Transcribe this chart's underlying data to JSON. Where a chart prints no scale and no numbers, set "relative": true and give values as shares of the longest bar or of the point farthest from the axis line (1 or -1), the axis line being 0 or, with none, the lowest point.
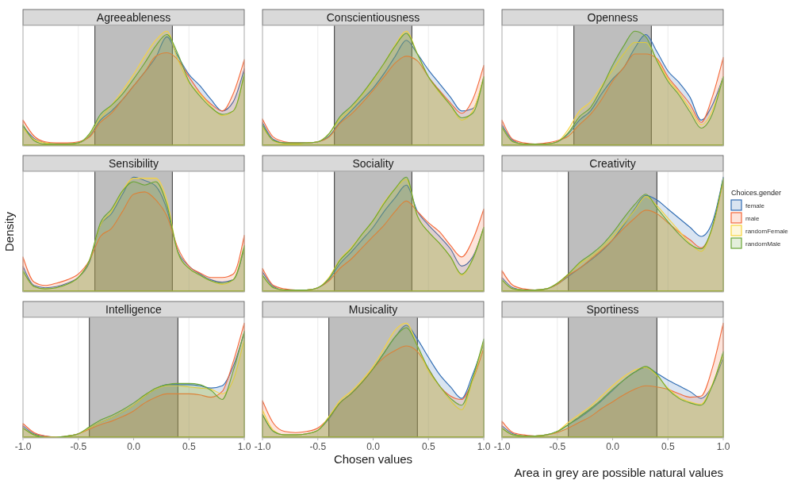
{
  "chart_data": [
    {
      "type": "area",
      "title": "Agreeableness",
      "relative": true,
      "x": [
        -1,
        -0.9,
        -0.8,
        -0.7,
        -0.6,
        -0.5,
        -0.4,
        -0.3,
        -0.2,
        -0.1,
        0,
        0.1,
        0.2,
        0.3,
        0.4,
        0.5,
        0.6,
        0.7,
        0.8,
        0.9,
        1
      ],
      "xlim": [
        -1,
        1
      ],
      "xticks": [
        -1,
        -0.5,
        0,
        0.5,
        1
      ],
      "tick_labels": false,
      "grid": "x",
      "bands": [
        {
          "axis": "x",
          "from": -0.35,
          "to": 0.35,
          "color": "#bebebe"
        }
      ],
      "ref_lines": [
        {
          "axis": "x",
          "value": -0.35,
          "color": "#333333"
        },
        {
          "axis": "x",
          "value": 0.35,
          "color": "#333333"
        }
      ],
      "series": [
        {
          "color": "#2f6cb3",
          "values": [
            0.17,
            0.06,
            0.02,
            0.01,
            0.01,
            0.02,
            0.08,
            0.22,
            0.3,
            0.4,
            0.52,
            0.64,
            0.77,
            0.95,
            0.78,
            0.62,
            0.52,
            0.4,
            0.3,
            0.38,
            0.67
          ]
        },
        {
          "color": "#f4683a",
          "values": [
            0.22,
            0.08,
            0.03,
            0.02,
            0.02,
            0.03,
            0.07,
            0.2,
            0.28,
            0.4,
            0.52,
            0.64,
            0.78,
            0.81,
            0.75,
            0.6,
            0.46,
            0.36,
            0.3,
            0.45,
            0.75
          ]
        },
        {
          "color": "#f7d43c",
          "values": [
            0.15,
            0.05,
            0.02,
            0.01,
            0.01,
            0.02,
            0.09,
            0.24,
            0.35,
            0.48,
            0.62,
            0.78,
            0.92,
            1,
            0.75,
            0.55,
            0.45,
            0.34,
            0.26,
            0.3,
            0.62
          ]
        },
        {
          "color": "#6aa535",
          "values": [
            0.18,
            0.04,
            0.01,
            0.01,
            0.01,
            0.02,
            0.1,
            0.27,
            0.35,
            0.45,
            0.58,
            0.72,
            0.87,
            0.97,
            0.8,
            0.56,
            0.43,
            0.33,
            0.27,
            0.3,
            0.63
          ]
        }
      ]
    },
    {
      "type": "area",
      "title": "Conscientiousness",
      "relative": true,
      "x": [
        -1,
        -0.9,
        -0.8,
        -0.7,
        -0.6,
        -0.5,
        -0.4,
        -0.3,
        -0.2,
        -0.1,
        0,
        0.1,
        0.2,
        0.3,
        0.4,
        0.5,
        0.6,
        0.7,
        0.8,
        0.9,
        1
      ],
      "xlim": [
        -1,
        1
      ],
      "xticks": [
        -1,
        -0.5,
        0,
        0.5,
        1
      ],
      "tick_labels": false,
      "grid": "x",
      "bands": [
        {
          "axis": "x",
          "from": -0.35,
          "to": 0.35,
          "color": "#bebebe"
        }
      ],
      "ref_lines": [
        {
          "axis": "x",
          "value": -0.35,
          "color": "#333333"
        },
        {
          "axis": "x",
          "value": 0.35,
          "color": "#333333"
        }
      ],
      "series": [
        {
          "color": "#2f6cb3",
          "values": [
            0.2,
            0.05,
            0.02,
            0.02,
            0.02,
            0.03,
            0.08,
            0.2,
            0.3,
            0.4,
            0.5,
            0.63,
            0.78,
            0.92,
            0.8,
            0.66,
            0.54,
            0.42,
            0.3,
            0.32,
            0.6
          ]
        },
        {
          "color": "#f4683a",
          "values": [
            0.23,
            0.07,
            0.03,
            0.02,
            0.02,
            0.03,
            0.07,
            0.19,
            0.27,
            0.37,
            0.48,
            0.6,
            0.72,
            0.78,
            0.74,
            0.6,
            0.48,
            0.37,
            0.28,
            0.4,
            0.7
          ]
        },
        {
          "color": "#f7d43c",
          "values": [
            0.16,
            0.04,
            0.01,
            0.01,
            0.02,
            0.03,
            0.1,
            0.23,
            0.32,
            0.44,
            0.57,
            0.72,
            0.88,
            1,
            0.8,
            0.6,
            0.46,
            0.35,
            0.22,
            0.3,
            0.6
          ]
        },
        {
          "color": "#6aa535",
          "values": [
            0.18,
            0.04,
            0.02,
            0.02,
            0.02,
            0.03,
            0.1,
            0.25,
            0.34,
            0.45,
            0.58,
            0.72,
            0.87,
            0.98,
            0.8,
            0.6,
            0.47,
            0.35,
            0.24,
            0.28,
            0.6
          ]
        }
      ]
    },
    {
      "type": "area",
      "title": "Openness",
      "relative": true,
      "x": [
        -1,
        -0.9,
        -0.8,
        -0.7,
        -0.6,
        -0.5,
        -0.4,
        -0.3,
        -0.2,
        -0.1,
        0,
        0.1,
        0.2,
        0.3,
        0.4,
        0.5,
        0.6,
        0.7,
        0.8,
        0.9,
        1
      ],
      "xlim": [
        -1,
        1
      ],
      "xticks": [
        -1,
        -0.5,
        0,
        0.5,
        1
      ],
      "tick_labels": false,
      "grid": "x",
      "bands": [
        {
          "axis": "x",
          "from": -0.35,
          "to": 0.35,
          "color": "#bebebe"
        }
      ],
      "ref_lines": [
        {
          "axis": "x",
          "value": -0.35,
          "color": "#333333"
        },
        {
          "axis": "x",
          "value": 0.35,
          "color": "#333333"
        }
      ],
      "series": [
        {
          "color": "#2f6cb3",
          "values": [
            0.18,
            0.04,
            0.01,
            0.01,
            0.01,
            0.03,
            0.1,
            0.22,
            0.3,
            0.45,
            0.58,
            0.68,
            0.85,
            0.97,
            0.82,
            0.65,
            0.55,
            0.42,
            0.22,
            0.35,
            0.6
          ]
        },
        {
          "color": "#f4683a",
          "values": [
            0.22,
            0.05,
            0.02,
            0.01,
            0.02,
            0.04,
            0.08,
            0.18,
            0.27,
            0.4,
            0.56,
            0.68,
            0.8,
            0.8,
            0.76,
            0.6,
            0.48,
            0.36,
            0.2,
            0.42,
            0.77
          ]
        },
        {
          "color": "#f7d43c",
          "values": [
            0.16,
            0.03,
            0.01,
            0.01,
            0.01,
            0.03,
            0.14,
            0.3,
            0.38,
            0.52,
            0.66,
            0.8,
            0.9,
            0.9,
            0.75,
            0.58,
            0.46,
            0.32,
            0.18,
            0.3,
            0.6
          ]
        },
        {
          "color": "#6aa535",
          "values": [
            0.16,
            0.03,
            0.01,
            0.01,
            0.01,
            0.03,
            0.11,
            0.25,
            0.33,
            0.5,
            0.7,
            0.87,
            1,
            0.95,
            0.74,
            0.56,
            0.44,
            0.29,
            0.15,
            0.27,
            0.6
          ]
        }
      ]
    },
    {
      "type": "area",
      "title": "Sensibility",
      "ylabel": "Density",
      "relative": true,
      "x": [
        -1,
        -0.9,
        -0.8,
        -0.7,
        -0.6,
        -0.5,
        -0.4,
        -0.3,
        -0.2,
        -0.1,
        0,
        0.1,
        0.2,
        0.3,
        0.4,
        0.5,
        0.6,
        0.7,
        0.8,
        0.9,
        1
      ],
      "xlim": [
        -1,
        1
      ],
      "xticks": [
        -1,
        -0.5,
        0,
        0.5,
        1
      ],
      "tick_labels": false,
      "grid": "x",
      "bands": [
        {
          "axis": "x",
          "from": -0.35,
          "to": 0.35,
          "color": "#bebebe"
        }
      ],
      "ref_lines": [
        {
          "axis": "x",
          "value": -0.35,
          "color": "#333333"
        },
        {
          "axis": "x",
          "value": 0.35,
          "color": "#333333"
        }
      ],
      "series": [
        {
          "color": "#2f6cb3",
          "values": [
            0.22,
            0.05,
            0.03,
            0.04,
            0.07,
            0.12,
            0.25,
            0.58,
            0.68,
            0.85,
            1,
            0.97,
            0.92,
            0.72,
            0.35,
            0.22,
            0.15,
            0.1,
            0.08,
            0.1,
            0.38
          ]
        },
        {
          "color": "#f4683a",
          "values": [
            0.3,
            0.08,
            0.05,
            0.07,
            0.1,
            0.15,
            0.27,
            0.48,
            0.55,
            0.7,
            0.85,
            0.87,
            0.8,
            0.66,
            0.38,
            0.22,
            0.16,
            0.12,
            0.12,
            0.15,
            0.49
          ]
        },
        {
          "color": "#f7d43c",
          "values": [
            0.18,
            0.04,
            0.02,
            0.03,
            0.06,
            0.12,
            0.27,
            0.58,
            0.7,
            0.88,
            0.99,
            0.99,
            0.99,
            0.8,
            0.34,
            0.2,
            0.14,
            0.09,
            0.06,
            0.1,
            0.4
          ]
        },
        {
          "color": "#6aa535",
          "values": [
            0.18,
            0.04,
            0.02,
            0.03,
            0.06,
            0.12,
            0.27,
            0.6,
            0.72,
            0.88,
            0.96,
            0.93,
            0.96,
            0.76,
            0.34,
            0.2,
            0.14,
            0.09,
            0.07,
            0.1,
            0.4
          ]
        }
      ]
    },
    {
      "type": "area",
      "title": "Sociality",
      "relative": true,
      "x": [
        -1,
        -0.9,
        -0.8,
        -0.7,
        -0.6,
        -0.5,
        -0.4,
        -0.3,
        -0.2,
        -0.1,
        0,
        0.1,
        0.2,
        0.3,
        0.4,
        0.5,
        0.6,
        0.7,
        0.8,
        0.9,
        1
      ],
      "xlim": [
        -1,
        1
      ],
      "xticks": [
        -1,
        -0.5,
        0,
        0.5,
        1
      ],
      "tick_labels": false,
      "grid": "x",
      "bands": [
        {
          "axis": "x",
          "from": -0.35,
          "to": 0.35,
          "color": "#bebebe"
        }
      ],
      "ref_lines": [
        {
          "axis": "x",
          "value": -0.35,
          "color": "#333333"
        },
        {
          "axis": "x",
          "value": 0.35,
          "color": "#333333"
        }
      ],
      "series": [
        {
          "color": "#2f6cb3",
          "values": [
            0.17,
            0.04,
            0.01,
            0.01,
            0.01,
            0.03,
            0.1,
            0.24,
            0.34,
            0.45,
            0.56,
            0.7,
            0.82,
            0.93,
            0.7,
            0.58,
            0.48,
            0.37,
            0.22,
            0.3,
            0.56
          ]
        },
        {
          "color": "#f4683a",
          "values": [
            0.2,
            0.05,
            0.02,
            0.01,
            0.01,
            0.03,
            0.09,
            0.2,
            0.28,
            0.38,
            0.48,
            0.58,
            0.7,
            0.79,
            0.7,
            0.6,
            0.52,
            0.4,
            0.3,
            0.45,
            0.72
          ]
        },
        {
          "color": "#f7d43c",
          "values": [
            0.14,
            0.03,
            0.01,
            0.01,
            0.01,
            0.03,
            0.12,
            0.28,
            0.38,
            0.5,
            0.62,
            0.78,
            0.9,
            0.98,
            0.66,
            0.52,
            0.42,
            0.3,
            0.14,
            0.28,
            0.56
          ]
        },
        {
          "color": "#6aa535",
          "values": [
            0.14,
            0.03,
            0.01,
            0.01,
            0.01,
            0.03,
            0.11,
            0.27,
            0.37,
            0.5,
            0.62,
            0.77,
            0.9,
            1,
            0.66,
            0.52,
            0.42,
            0.3,
            0.15,
            0.28,
            0.56
          ]
        }
      ]
    },
    {
      "type": "area",
      "title": "Creativity",
      "legend": "right",
      "legend_title": "Choices.gender",
      "relative": true,
      "x": [
        -1,
        -0.9,
        -0.8,
        -0.7,
        -0.6,
        -0.5,
        -0.4,
        -0.3,
        -0.2,
        -0.1,
        0,
        0.1,
        0.2,
        0.3,
        0.4,
        0.5,
        0.6,
        0.7,
        0.8,
        0.9,
        1
      ],
      "xlim": [
        -1,
        1
      ],
      "xticks": [
        -1,
        -0.5,
        0,
        0.5,
        1
      ],
      "tick_labels": false,
      "grid": "x",
      "bands": [
        {
          "axis": "x",
          "from": -0.4,
          "to": 0.4,
          "color": "#bebebe"
        }
      ],
      "ref_lines": [
        {
          "axis": "x",
          "value": -0.4,
          "color": "#333333"
        },
        {
          "axis": "x",
          "value": 0.4,
          "color": "#333333"
        }
      ],
      "series": [
        {
          "name": "female",
          "color": "#2f6cb3",
          "values": [
            0.12,
            0.03,
            0.01,
            0.01,
            0.02,
            0.06,
            0.13,
            0.2,
            0.27,
            0.35,
            0.45,
            0.58,
            0.72,
            0.84,
            0.8,
            0.72,
            0.64,
            0.56,
            0.48,
            0.6,
            1
          ]
        },
        {
          "name": "male",
          "color": "#f4683a",
          "values": [
            0.18,
            0.05,
            0.02,
            0.01,
            0.02,
            0.06,
            0.14,
            0.2,
            0.28,
            0.36,
            0.45,
            0.55,
            0.64,
            0.71,
            0.68,
            0.6,
            0.52,
            0.45,
            0.38,
            0.55,
            0.97
          ]
        },
        {
          "name": "randomFemale",
          "color": "#f7d43c",
          "values": [
            0.1,
            0.02,
            0.01,
            0.01,
            0.02,
            0.07,
            0.15,
            0.24,
            0.3,
            0.38,
            0.48,
            0.59,
            0.71,
            0.83,
            0.75,
            0.64,
            0.53,
            0.42,
            0.35,
            0.55,
            0.98
          ]
        },
        {
          "name": "randomMale",
          "color": "#6aa535",
          "values": [
            0.1,
            0.02,
            0.01,
            0.01,
            0.02,
            0.07,
            0.15,
            0.25,
            0.32,
            0.4,
            0.51,
            0.64,
            0.76,
            0.85,
            0.73,
            0.61,
            0.5,
            0.41,
            0.37,
            0.56,
            0.99
          ]
        }
      ]
    },
    {
      "type": "area",
      "title": "Intelligence",
      "relative": true,
      "x": [
        -1,
        -0.9,
        -0.8,
        -0.7,
        -0.6,
        -0.5,
        -0.4,
        -0.3,
        -0.2,
        -0.1,
        0,
        0.1,
        0.2,
        0.3,
        0.4,
        0.5,
        0.6,
        0.7,
        0.8,
        0.9,
        1
      ],
      "xlim": [
        -1,
        1
      ],
      "xticks": [
        {
          "value": -1,
          "label": "-1.0"
        },
        {
          "value": -0.5,
          "label": "-0.5"
        },
        {
          "value": 0,
          "label": "0.0"
        },
        {
          "value": 0.5,
          "label": "0.5"
        },
        {
          "value": 1,
          "label": "1.0"
        }
      ],
      "tick_labels": "x",
      "grid": "x",
      "bands": [
        {
          "axis": "x",
          "from": -0.4,
          "to": 0.4,
          "color": "#bebebe"
        }
      ],
      "ref_lines": [
        {
          "axis": "x",
          "value": -0.4,
          "color": "#333333"
        },
        {
          "axis": "x",
          "value": 0.4,
          "color": "#333333"
        }
      ],
      "series": [
        {
          "color": "#2f6cb3",
          "values": [
            0.1,
            0.03,
            0.01,
            0,
            0.01,
            0.03,
            0.08,
            0.13,
            0.17,
            0.22,
            0.28,
            0.36,
            0.42,
            0.46,
            0.46,
            0.46,
            0.45,
            0.43,
            0.45,
            0.62,
            0.92
          ]
        },
        {
          "color": "#f4683a",
          "values": [
            0.12,
            0.04,
            0.01,
            0,
            0.01,
            0.03,
            0.07,
            0.11,
            0.14,
            0.18,
            0.23,
            0.3,
            0.35,
            0.38,
            0.38,
            0.38,
            0.37,
            0.35,
            0.4,
            0.66,
            1
          ]
        },
        {
          "color": "#f7d43c",
          "values": [
            0.08,
            0.02,
            0,
            0,
            0.01,
            0.03,
            0.08,
            0.13,
            0.17,
            0.22,
            0.28,
            0.36,
            0.42,
            0.45,
            0.45,
            0.44,
            0.43,
            0.42,
            0.38,
            0.5,
            0.86
          ]
        },
        {
          "color": "#6aa535",
          "values": [
            0.08,
            0.02,
            0,
            0,
            0.01,
            0.03,
            0.09,
            0.15,
            0.19,
            0.24,
            0.3,
            0.37,
            0.43,
            0.46,
            0.47,
            0.47,
            0.46,
            0.41,
            0.33,
            0.58,
            0.93
          ]
        }
      ]
    },
    {
      "type": "area",
      "title": "Musicality",
      "xlabel": "Chosen values",
      "relative": true,
      "x": [
        -1,
        -0.9,
        -0.8,
        -0.7,
        -0.6,
        -0.5,
        -0.4,
        -0.3,
        -0.2,
        -0.1,
        0,
        0.1,
        0.2,
        0.3,
        0.4,
        0.5,
        0.6,
        0.7,
        0.8,
        0.9,
        1
      ],
      "xlim": [
        -1,
        1
      ],
      "xticks": [
        {
          "value": -1,
          "label": "-1.0"
        },
        {
          "value": -0.5,
          "label": "-0.5"
        },
        {
          "value": 0,
          "label": "0.0"
        },
        {
          "value": 0.5,
          "label": "0.5"
        },
        {
          "value": 1,
          "label": "1.0"
        }
      ],
      "tick_labels": "x",
      "grid": "x",
      "bands": [
        {
          "axis": "x",
          "from": -0.4,
          "to": 0.4,
          "color": "#bebebe"
        }
      ],
      "ref_lines": [
        {
          "axis": "x",
          "value": -0.4,
          "color": "#333333"
        },
        {
          "axis": "x",
          "value": 0.4,
          "color": "#333333"
        }
      ],
      "series": [
        {
          "color": "#2f6cb3",
          "values": [
            0.2,
            0.05,
            0.02,
            0.02,
            0.03,
            0.06,
            0.16,
            0.3,
            0.38,
            0.48,
            0.6,
            0.74,
            0.88,
            0.98,
            0.86,
            0.7,
            0.55,
            0.44,
            0.34,
            0.55,
            0.82
          ]
        },
        {
          "color": "#f4683a",
          "values": [
            0.32,
            0.12,
            0.05,
            0.04,
            0.05,
            0.08,
            0.17,
            0.3,
            0.38,
            0.48,
            0.6,
            0.7,
            0.76,
            0.8,
            0.75,
            0.6,
            0.45,
            0.36,
            0.33,
            0.5,
            0.78
          ]
        },
        {
          "color": "#f7d43c",
          "values": [
            0.24,
            0.06,
            0.02,
            0.02,
            0.03,
            0.06,
            0.18,
            0.32,
            0.4,
            0.5,
            0.62,
            0.78,
            0.94,
            1,
            0.8,
            0.58,
            0.45,
            0.32,
            0.24,
            0.5,
            0.84
          ]
        },
        {
          "color": "#6aa535",
          "values": [
            0.2,
            0.05,
            0.02,
            0.02,
            0.03,
            0.06,
            0.17,
            0.3,
            0.38,
            0.48,
            0.6,
            0.74,
            0.88,
            0.96,
            0.8,
            0.6,
            0.45,
            0.34,
            0.28,
            0.52,
            0.86
          ]
        }
      ]
    },
    {
      "type": "area",
      "title": "Sportiness",
      "annotations": [
        "Area in grey are possible natural values"
      ],
      "relative": true,
      "x": [
        -1,
        -0.9,
        -0.8,
        -0.7,
        -0.6,
        -0.5,
        -0.4,
        -0.3,
        -0.2,
        -0.1,
        0,
        0.1,
        0.2,
        0.3,
        0.4,
        0.5,
        0.6,
        0.7,
        0.8,
        0.9,
        1
      ],
      "xlim": [
        -1,
        1
      ],
      "xticks": [
        {
          "value": -1,
          "label": "-1.0"
        },
        {
          "value": -0.5,
          "label": "-0.5"
        },
        {
          "value": 0,
          "label": "0.0"
        },
        {
          "value": 0.5,
          "label": "0.5"
        },
        {
          "value": 1,
          "label": "1.0"
        }
      ],
      "tick_labels": "x",
      "grid": "x",
      "bands": [
        {
          "axis": "x",
          "from": -0.4,
          "to": 0.4,
          "color": "#bebebe"
        }
      ],
      "ref_lines": [
        {
          "axis": "x",
          "value": -0.4,
          "color": "#333333"
        },
        {
          "axis": "x",
          "value": 0.4,
          "color": "#333333"
        }
      ],
      "series": [
        {
          "color": "#2f6cb3",
          "values": [
            0.1,
            0.03,
            0.01,
            0.01,
            0.02,
            0.05,
            0.11,
            0.17,
            0.24,
            0.32,
            0.41,
            0.5,
            0.57,
            0.61,
            0.56,
            0.5,
            0.45,
            0.4,
            0.34,
            0.45,
            0.7
          ]
        },
        {
          "color": "#f4683a",
          "values": [
            0.14,
            0.04,
            0.02,
            0.01,
            0.02,
            0.04,
            0.08,
            0.13,
            0.18,
            0.25,
            0.31,
            0.37,
            0.42,
            0.45,
            0.44,
            0.42,
            0.38,
            0.35,
            0.36,
            0.6,
            1
          ]
        },
        {
          "color": "#f7d43c",
          "values": [
            0.08,
            0.02,
            0.01,
            0.01,
            0.02,
            0.05,
            0.13,
            0.2,
            0.27,
            0.36,
            0.45,
            0.53,
            0.59,
            0.61,
            0.54,
            0.43,
            0.35,
            0.31,
            0.29,
            0.46,
            0.73
          ]
        },
        {
          "color": "#6aa535",
          "values": [
            0.08,
            0.02,
            0.01,
            0.01,
            0.02,
            0.05,
            0.11,
            0.18,
            0.25,
            0.33,
            0.42,
            0.5,
            0.57,
            0.62,
            0.55,
            0.42,
            0.34,
            0.3,
            0.28,
            0.45,
            0.75
          ]
        }
      ]
    }
  ]
}
